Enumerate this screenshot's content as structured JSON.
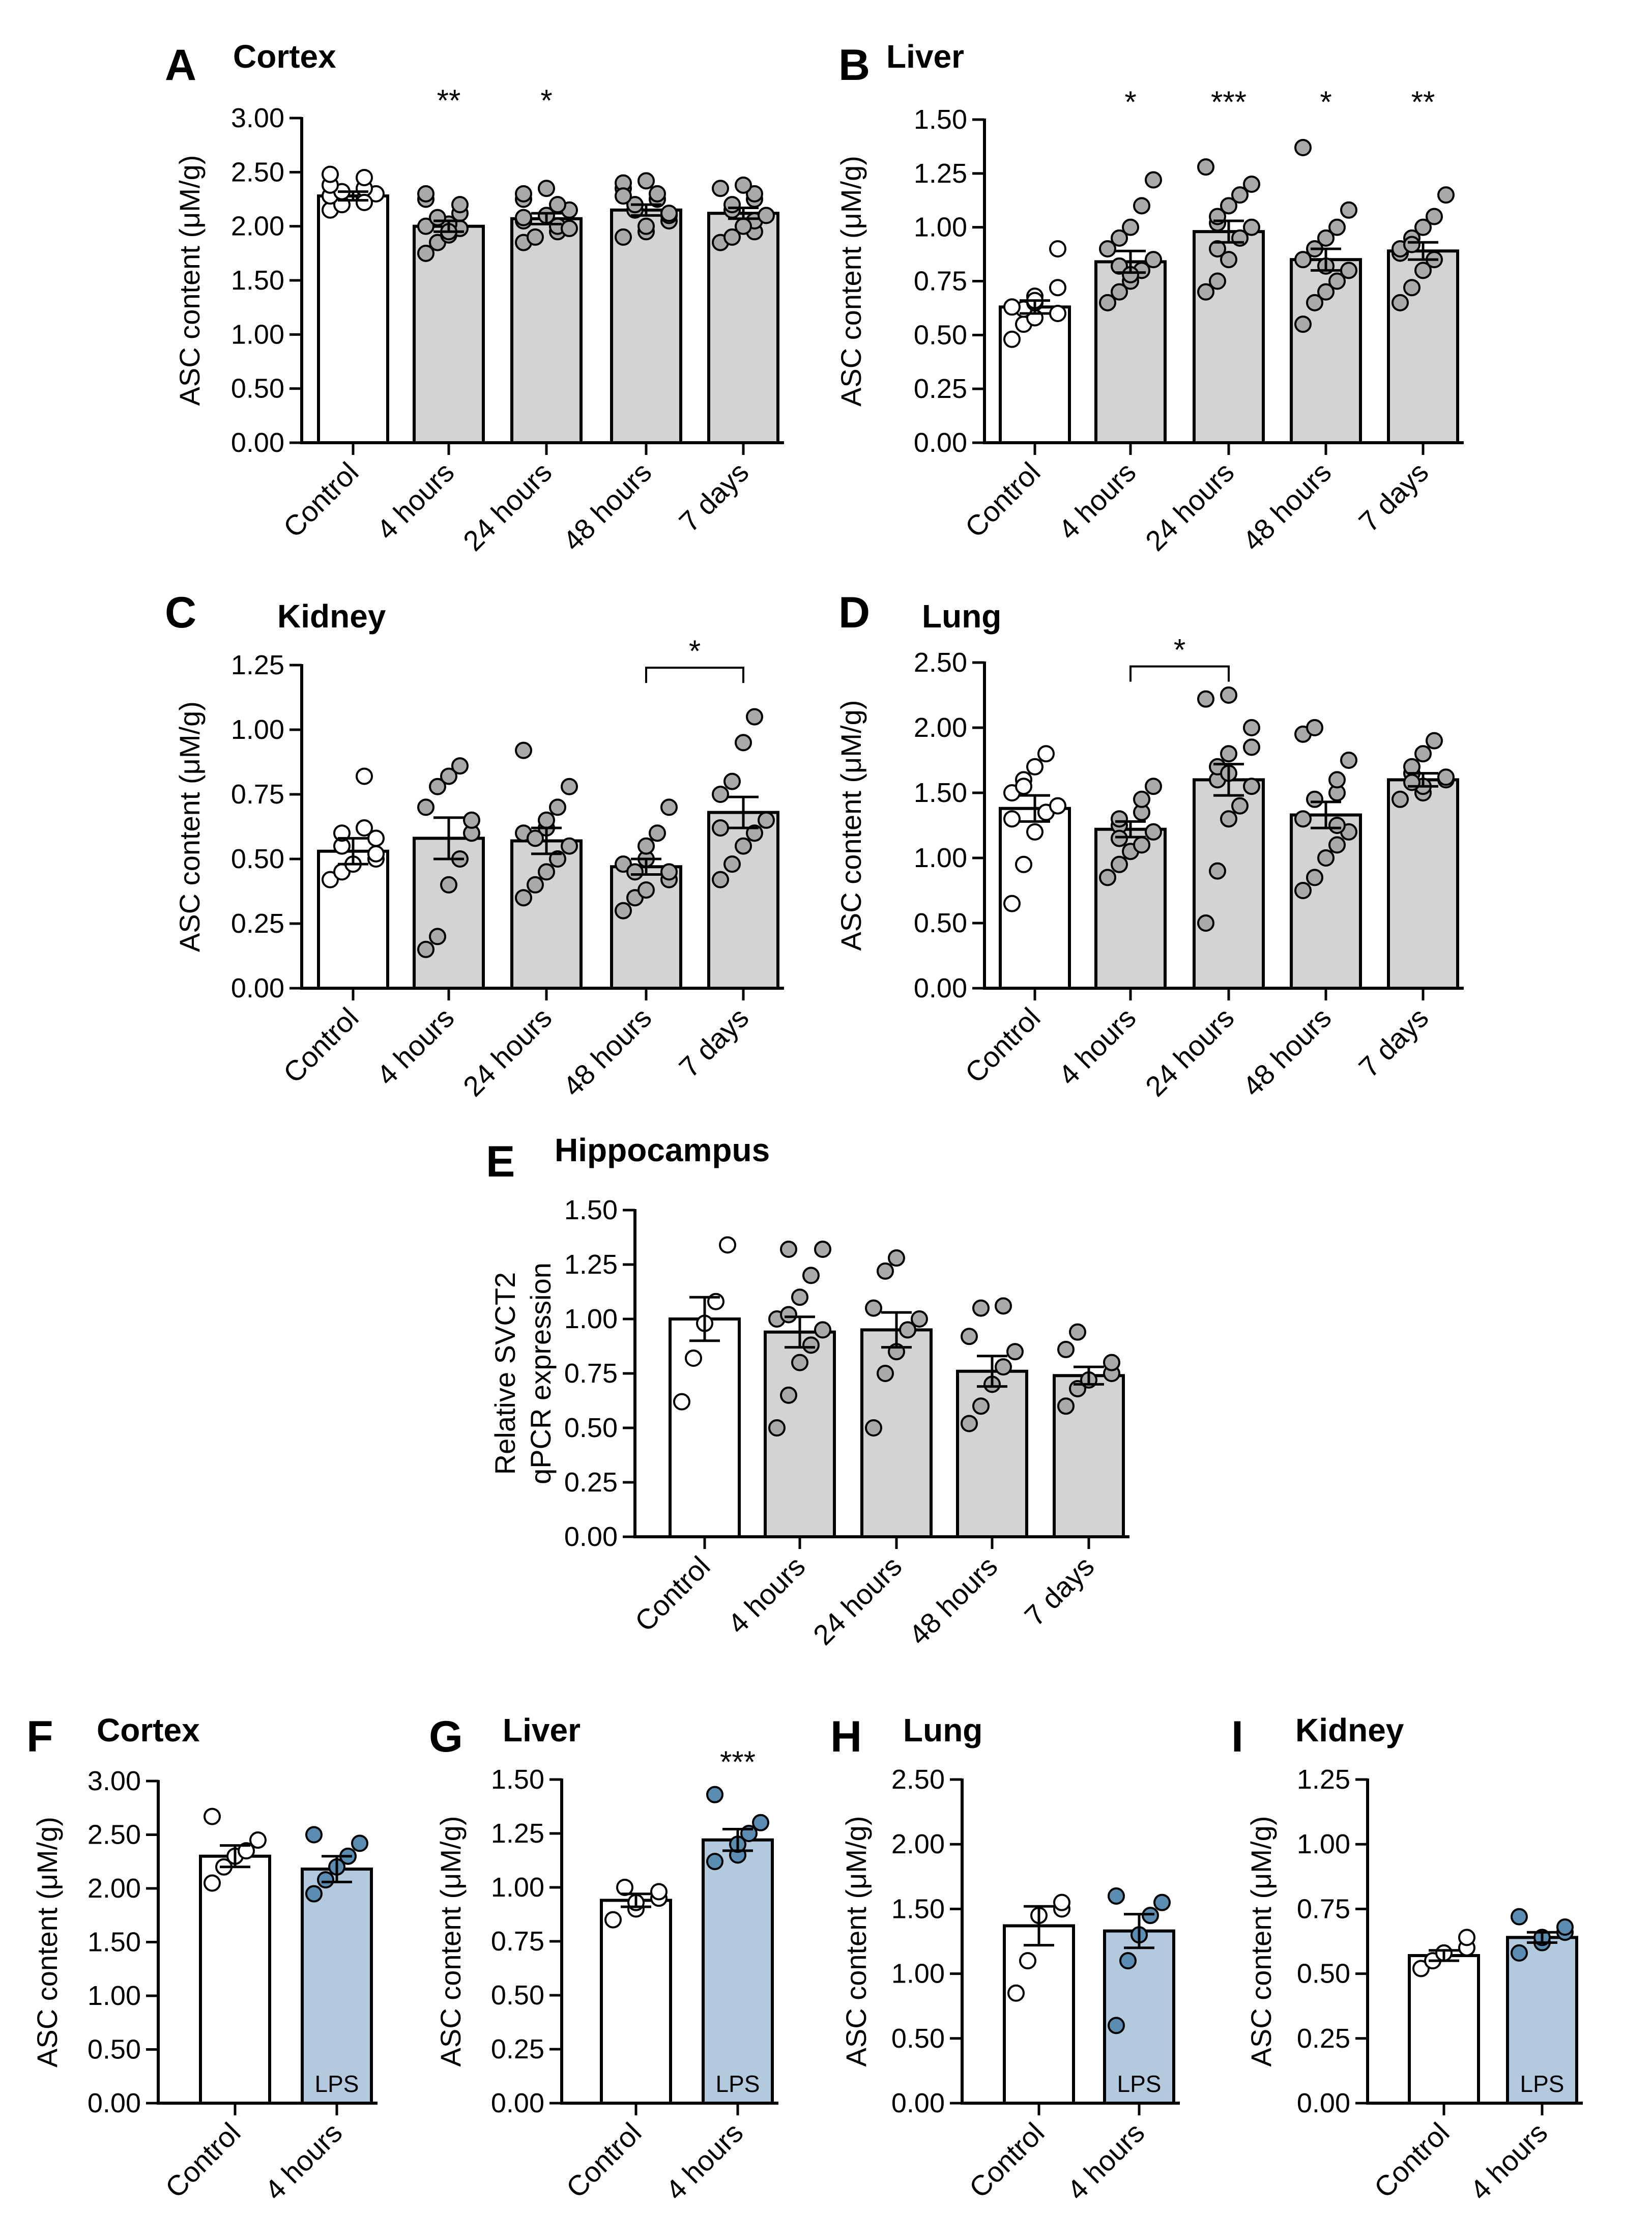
{
  "colors": {
    "control": "#ffffff",
    "treated": "#d3d3d3",
    "lps": "#b3c9dd",
    "dot_control": "#ffffff",
    "dot_treated": "#a9a9a9",
    "dot_lps": "#5b8db3",
    "axis": "#000000"
  },
  "chart_data": [
    {
      "panel": "A",
      "title": "Cortex",
      "type": "bar",
      "ylabel": "ASC content (μM/g)",
      "ylim": [
        0,
        3
      ],
      "ytick_step": 0.5,
      "yticks": [
        "0.00",
        "0.50",
        "1.00",
        "1.50",
        "2.00",
        "2.50",
        "3.00"
      ],
      "categories": [
        "Control",
        "4 hours",
        "24 hours",
        "48 hours",
        "7 days"
      ],
      "values": [
        2.28,
        2.0,
        2.07,
        2.15,
        2.12
      ],
      "sem": [
        0.04,
        0.05,
        0.05,
        0.05,
        0.05
      ],
      "points": [
        [
          2.15,
          2.2,
          2.25,
          2.28,
          2.3,
          2.32,
          2.35,
          2.38,
          2.45,
          2.48,
          2.22
        ],
        [
          1.75,
          1.85,
          1.92,
          1.98,
          2.0,
          2.02,
          2.08,
          2.12,
          2.2,
          2.25,
          2.3,
          1.95
        ],
        [
          1.85,
          1.9,
          1.95,
          2.0,
          2.05,
          2.08,
          2.1,
          2.15,
          2.2,
          2.25,
          2.3,
          2.35,
          1.98
        ],
        [
          1.9,
          1.95,
          2.0,
          2.05,
          2.1,
          2.15,
          2.2,
          2.25,
          2.3,
          2.35,
          2.4,
          2.42,
          2.12,
          2.28
        ],
        [
          1.85,
          1.9,
          1.95,
          2.05,
          2.1,
          2.15,
          2.2,
          2.25,
          2.3,
          2.35,
          2.38,
          2.0
        ]
      ],
      "significance": [
        "",
        "**",
        "*",
        "",
        ""
      ],
      "bracket": null,
      "bar_text": [
        "",
        "",
        "",
        "",
        ""
      ]
    },
    {
      "panel": "B",
      "title": "Liver",
      "type": "bar",
      "ylabel": "ASC content (μM/g)",
      "ylim": [
        0,
        1.5
      ],
      "ytick_step": 0.25,
      "yticks": [
        "0.00",
        "0.25",
        "0.50",
        "0.75",
        "1.00",
        "1.25",
        "1.50"
      ],
      "categories": [
        "Control",
        "4 hours",
        "24 hours",
        "48 hours",
        "7 days"
      ],
      "values": [
        0.63,
        0.84,
        0.98,
        0.85,
        0.89
      ],
      "sem": [
        0.03,
        0.05,
        0.05,
        0.05,
        0.04
      ],
      "points": [
        [
          0.48,
          0.55,
          0.58,
          0.6,
          0.62,
          0.63,
          0.65,
          0.68,
          0.72,
          0.9,
          0.66
        ],
        [
          0.65,
          0.7,
          0.75,
          0.8,
          0.85,
          0.9,
          0.95,
          1.0,
          1.1,
          1.22,
          0.82,
          0.78
        ],
        [
          0.7,
          0.75,
          0.85,
          0.95,
          1.0,
          1.02,
          1.05,
          1.1,
          1.15,
          1.2,
          1.28,
          0.9
        ],
        [
          0.55,
          0.65,
          0.7,
          0.75,
          0.8,
          0.85,
          0.9,
          0.95,
          1.0,
          1.08,
          1.37,
          0.82
        ],
        [
          0.65,
          0.72,
          0.8,
          0.85,
          0.88,
          0.9,
          0.95,
          1.0,
          1.05,
          1.15,
          0.92
        ]
      ],
      "significance": [
        "",
        "*",
        "***",
        "*",
        "**"
      ],
      "bracket": null,
      "bar_text": [
        "",
        "",
        "",
        "",
        ""
      ]
    },
    {
      "panel": "C",
      "title": "Kidney",
      "type": "bar",
      "ylabel": "ASC content (μM/g)",
      "ylim": [
        0,
        1.25
      ],
      "ytick_step": 0.25,
      "yticks": [
        "0.00",
        "0.25",
        "0.50",
        "0.75",
        "1.00",
        "1.25"
      ],
      "categories": [
        "Control",
        "4 hours",
        "24 hours",
        "48 hours",
        "7 days"
      ],
      "values": [
        0.53,
        0.58,
        0.57,
        0.47,
        0.68
      ],
      "sem": [
        0.05,
        0.08,
        0.05,
        0.03,
        0.06
      ],
      "points": [
        [
          0.42,
          0.45,
          0.48,
          0.5,
          0.52,
          0.55,
          0.6,
          0.62,
          0.82,
          0.58
        ],
        [
          0.15,
          0.2,
          0.4,
          0.5,
          0.6,
          0.7,
          0.78,
          0.82,
          0.86,
          0.65
        ],
        [
          0.35,
          0.4,
          0.45,
          0.5,
          0.55,
          0.6,
          0.62,
          0.65,
          0.7,
          0.78,
          0.92,
          0.58
        ],
        [
          0.3,
          0.35,
          0.38,
          0.42,
          0.45,
          0.48,
          0.5,
          0.55,
          0.6,
          0.7,
          0.45
        ],
        [
          0.42,
          0.48,
          0.55,
          0.6,
          0.65,
          0.75,
          0.8,
          0.95,
          1.05,
          0.62
        ]
      ],
      "significance": [
        "",
        "",
        "",
        "",
        ""
      ],
      "bracket": {
        "from": 3,
        "to": 4,
        "label": "*",
        "level": 1.24
      },
      "bar_text": [
        "",
        "",
        "",
        "",
        ""
      ]
    },
    {
      "panel": "D",
      "title": "Lung",
      "type": "bar",
      "ylabel": "ASC content (μM/g)",
      "ylim": [
        0,
        2.5
      ],
      "ytick_step": 0.5,
      "yticks": [
        "0.00",
        "0.50",
        "1.00",
        "1.50",
        "2.00",
        "2.50"
      ],
      "categories": [
        "Control",
        "4 hours",
        "24 hours",
        "48 hours",
        "7 days"
      ],
      "values": [
        1.38,
        1.22,
        1.6,
        1.33,
        1.6
      ],
      "sem": [
        0.1,
        0.06,
        0.12,
        0.1,
        0.05
      ],
      "points": [
        [
          0.65,
          0.95,
          1.2,
          1.35,
          1.4,
          1.5,
          1.6,
          1.7,
          1.8,
          1.3,
          1.55
        ],
        [
          0.85,
          0.95,
          1.05,
          1.1,
          1.2,
          1.25,
          1.3,
          1.35,
          1.45,
          1.55,
          1.15
        ],
        [
          0.5,
          0.9,
          1.3,
          1.4,
          1.55,
          1.6,
          1.7,
          1.8,
          1.85,
          2.0,
          2.22,
          2.25,
          1.65
        ],
        [
          0.75,
          0.85,
          1.0,
          1.1,
          1.2,
          1.3,
          1.45,
          1.5,
          1.6,
          1.75,
          1.95,
          2.0,
          1.25
        ],
        [
          1.45,
          1.5,
          1.55,
          1.6,
          1.62,
          1.65,
          1.7,
          1.8,
          1.9,
          1.58
        ]
      ],
      "significance": [
        "",
        "",
        "",
        "",
        ""
      ],
      "bracket": {
        "from": 1,
        "to": 2,
        "label": "*",
        "level": 2.47
      },
      "bar_text": [
        "",
        "",
        "",
        "",
        ""
      ]
    },
    {
      "panel": "E",
      "title": "Hippocampus",
      "type": "bar",
      "ylabel_lines": [
        "Relative SVCT2",
        "qPCR expression"
      ],
      "ylim": [
        0,
        1.5
      ],
      "ytick_step": 0.25,
      "yticks": [
        "0.00",
        "0.25",
        "0.50",
        "0.75",
        "1.00",
        "1.25",
        "1.50"
      ],
      "categories": [
        "Control",
        "4 hours",
        "24 hours",
        "48 hours",
        "7 days"
      ],
      "values": [
        1.0,
        0.94,
        0.95,
        0.76,
        0.74
      ],
      "sem": [
        0.1,
        0.07,
        0.08,
        0.07,
        0.04
      ],
      "points": [
        [
          0.62,
          0.82,
          0.98,
          1.08,
          1.34
        ],
        [
          0.5,
          0.65,
          0.8,
          0.88,
          0.95,
          1.0,
          1.02,
          1.1,
          1.2,
          1.32,
          1.32
        ],
        [
          0.5,
          0.75,
          0.85,
          0.95,
          1.0,
          1.05,
          1.22,
          1.28
        ],
        [
          0.52,
          0.6,
          0.7,
          0.78,
          0.85,
          0.92,
          1.05,
          1.06
        ],
        [
          0.6,
          0.68,
          0.72,
          0.75,
          0.8,
          0.86,
          0.94
        ]
      ],
      "significance": [
        "",
        "",
        "",
        "",
        ""
      ],
      "bracket": null,
      "bar_text": [
        "",
        "",
        "",
        "",
        ""
      ]
    },
    {
      "panel": "F",
      "title": "Cortex",
      "type": "bar",
      "ylabel": "ASC content (μM/g)",
      "ylim": [
        0,
        3
      ],
      "ytick_step": 0.5,
      "yticks": [
        "0.00",
        "0.50",
        "1.00",
        "1.50",
        "2.00",
        "2.50",
        "3.00"
      ],
      "categories": [
        "Control",
        "4 hours"
      ],
      "values": [
        2.3,
        2.18
      ],
      "sem": [
        0.1,
        0.12
      ],
      "points": [
        [
          2.05,
          2.2,
          2.3,
          2.35,
          2.45,
          2.67
        ],
        [
          1.95,
          2.08,
          2.2,
          2.3,
          2.42,
          2.5
        ]
      ],
      "significance": [
        "",
        ""
      ],
      "bracket": null,
      "bar_text": [
        "",
        "LPS"
      ]
    },
    {
      "panel": "G",
      "title": "Liver",
      "type": "bar",
      "ylabel": "ASC content (μM/g)",
      "ylim": [
        0,
        1.5
      ],
      "ytick_step": 0.25,
      "yticks": [
        "0.00",
        "0.25",
        "0.50",
        "0.75",
        "1.00",
        "1.25",
        "1.50"
      ],
      "categories": [
        "Control",
        "4 hours"
      ],
      "values": [
        0.94,
        1.22
      ],
      "sem": [
        0.03,
        0.05
      ],
      "points": [
        [
          0.85,
          0.9,
          0.93,
          0.95,
          0.98,
          1.0
        ],
        [
          1.12,
          1.15,
          1.2,
          1.25,
          1.3,
          1.43
        ]
      ],
      "significance": [
        "",
        "***"
      ],
      "bracket": null,
      "bar_text": [
        "",
        "LPS"
      ]
    },
    {
      "panel": "H",
      "title": "Lung",
      "type": "bar",
      "ylabel": "ASC content (μM/g)",
      "ylim": [
        0,
        2.5
      ],
      "ytick_step": 0.5,
      "yticks": [
        "0.00",
        "0.50",
        "1.00",
        "1.50",
        "2.00",
        "2.50"
      ],
      "categories": [
        "Control",
        "4 hours"
      ],
      "values": [
        1.37,
        1.33
      ],
      "sem": [
        0.15,
        0.13
      ],
      "points": [
        [
          0.85,
          1.1,
          1.45,
          1.5,
          1.55
        ],
        [
          0.6,
          1.1,
          1.3,
          1.45,
          1.55,
          1.6
        ]
      ],
      "significance": [
        "",
        ""
      ],
      "bracket": null,
      "bar_text": [
        "",
        "LPS"
      ]
    },
    {
      "panel": "I",
      "title": "Kidney",
      "type": "bar",
      "ylabel": "ASC content (μM/g)",
      "ylim": [
        0,
        1.25
      ],
      "ytick_step": 0.25,
      "yticks": [
        "0.00",
        "0.25",
        "0.50",
        "0.75",
        "1.00",
        "1.25"
      ],
      "categories": [
        "Control",
        "4 hours"
      ],
      "values": [
        0.57,
        0.64
      ],
      "sem": [
        0.02,
        0.02
      ],
      "points": [
        [
          0.52,
          0.55,
          0.58,
          0.6,
          0.64
        ],
        [
          0.58,
          0.62,
          0.64,
          0.66,
          0.68,
          0.72
        ]
      ],
      "significance": [
        "",
        ""
      ],
      "bracket": null,
      "bar_text": [
        "",
        "LPS"
      ]
    }
  ]
}
